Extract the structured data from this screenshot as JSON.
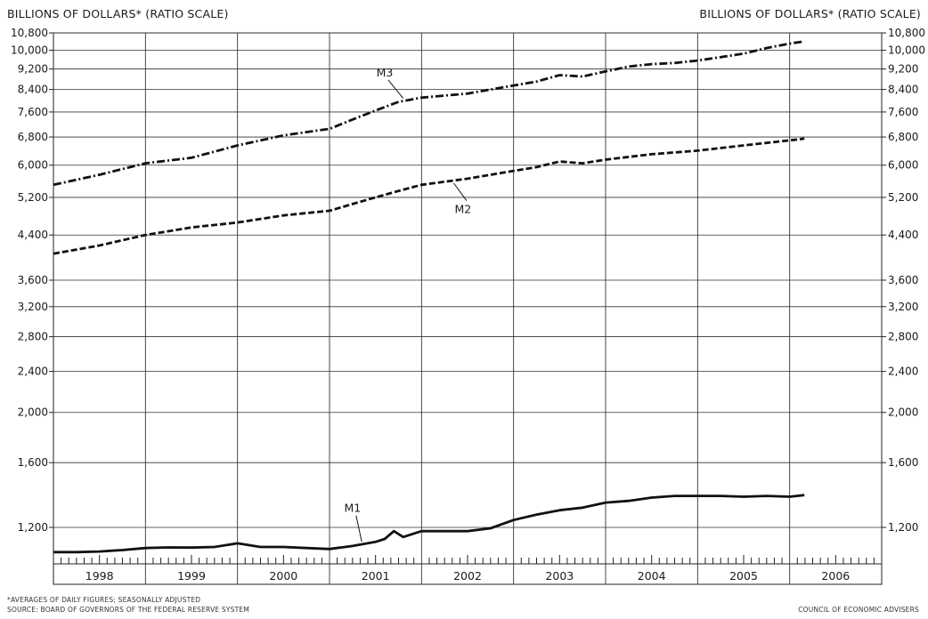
{
  "chart_data": {
    "type": "line",
    "title": "",
    "left_axis_label": "BILLIONS OF DOLLARS* (RATIO SCALE)",
    "right_axis_label": "BILLIONS OF DOLLARS* (RATIO SCALE)",
    "scale": "log",
    "ylim": [
      1070,
      10800
    ],
    "yticks": [
      1200,
      1600,
      2000,
      2400,
      2800,
      3200,
      3600,
      4400,
      5200,
      6000,
      6800,
      7600,
      8400,
      9200,
      10000,
      10800
    ],
    "ytick_labels": [
      "1,200",
      "1,600",
      "2,000",
      "2,400",
      "2,800",
      "3,200",
      "3,600",
      "4,400",
      "5,200",
      "6,000",
      "6,800",
      "7,600",
      "8,400",
      "9,200",
      "10,000",
      "10,800"
    ],
    "x_categories": [
      "1998",
      "1999",
      "2000",
      "2001",
      "2002",
      "2003",
      "2004",
      "2005",
      "2006"
    ],
    "xlim": [
      1998.0,
      2007.0
    ],
    "grid": true,
    "series": [
      {
        "name": "M3",
        "style": "dash-dot",
        "x": [
          1998.0,
          1998.5,
          1999.0,
          1999.5,
          2000.0,
          2000.5,
          2001.0,
          2001.25,
          2001.5,
          2001.75,
          2002.0,
          2002.5,
          2003.0,
          2003.25,
          2003.5,
          2003.75,
          2004.0,
          2004.25,
          2004.5,
          2004.75,
          2005.0,
          2005.25,
          2005.5,
          2005.75,
          2006.0,
          2006.16
        ],
        "values": [
          5500,
          5750,
          6050,
          6200,
          6550,
          6850,
          7050,
          7350,
          7650,
          7950,
          8100,
          8250,
          8550,
          8700,
          8950,
          8900,
          9100,
          9300,
          9400,
          9450,
          9550,
          9700,
          9850,
          10100,
          10300,
          10400
        ]
      },
      {
        "name": "M2",
        "style": "dashed",
        "x": [
          1998.0,
          1998.5,
          1999.0,
          1999.5,
          2000.0,
          2000.5,
          2001.0,
          2001.25,
          2001.5,
          2001.75,
          2002.0,
          2002.5,
          2003.0,
          2003.25,
          2003.5,
          2003.75,
          2004.0,
          2004.5,
          2005.0,
          2005.5,
          2006.0,
          2006.16
        ],
        "values": [
          4050,
          4200,
          4400,
          4550,
          4650,
          4800,
          4900,
          5050,
          5200,
          5350,
          5500,
          5650,
          5850,
          5950,
          6100,
          6050,
          6150,
          6300,
          6400,
          6550,
          6700,
          6750
        ]
      },
      {
        "name": "M1",
        "style": "solid",
        "x": [
          1998.0,
          1998.25,
          1998.5,
          1998.75,
          1999.0,
          1999.25,
          1999.5,
          1999.75,
          2000.0,
          2000.25,
          2000.5,
          2000.75,
          2001.0,
          2001.25,
          2001.5,
          2001.6,
          2001.7,
          2001.8,
          2002.0,
          2002.25,
          2002.5,
          2002.75,
          2003.0,
          2003.25,
          2003.5,
          2003.75,
          2004.0,
          2004.25,
          2004.5,
          2004.75,
          2005.0,
          2005.25,
          2005.5,
          2005.75,
          2006.0,
          2006.16
        ],
        "values": [
          1075,
          1075,
          1078,
          1085,
          1095,
          1098,
          1097,
          1100,
          1118,
          1100,
          1100,
          1095,
          1090,
          1105,
          1125,
          1140,
          1180,
          1150,
          1180,
          1180,
          1180,
          1195,
          1240,
          1270,
          1295,
          1310,
          1340,
          1350,
          1370,
          1380,
          1380,
          1380,
          1375,
          1380,
          1375,
          1385
        ]
      }
    ],
    "annotations": [
      "M3",
      "M2",
      "M1"
    ]
  },
  "footer": {
    "note": "*AVERAGES OF DAILY FIGURES; SEASONALLY ADJUSTED",
    "source": "SOURCE: BOARD OF GOVERNORS OF THE FEDERAL RESERVE SYSTEM",
    "credit": "COUNCIL OF ECONOMIC ADVISERS"
  }
}
